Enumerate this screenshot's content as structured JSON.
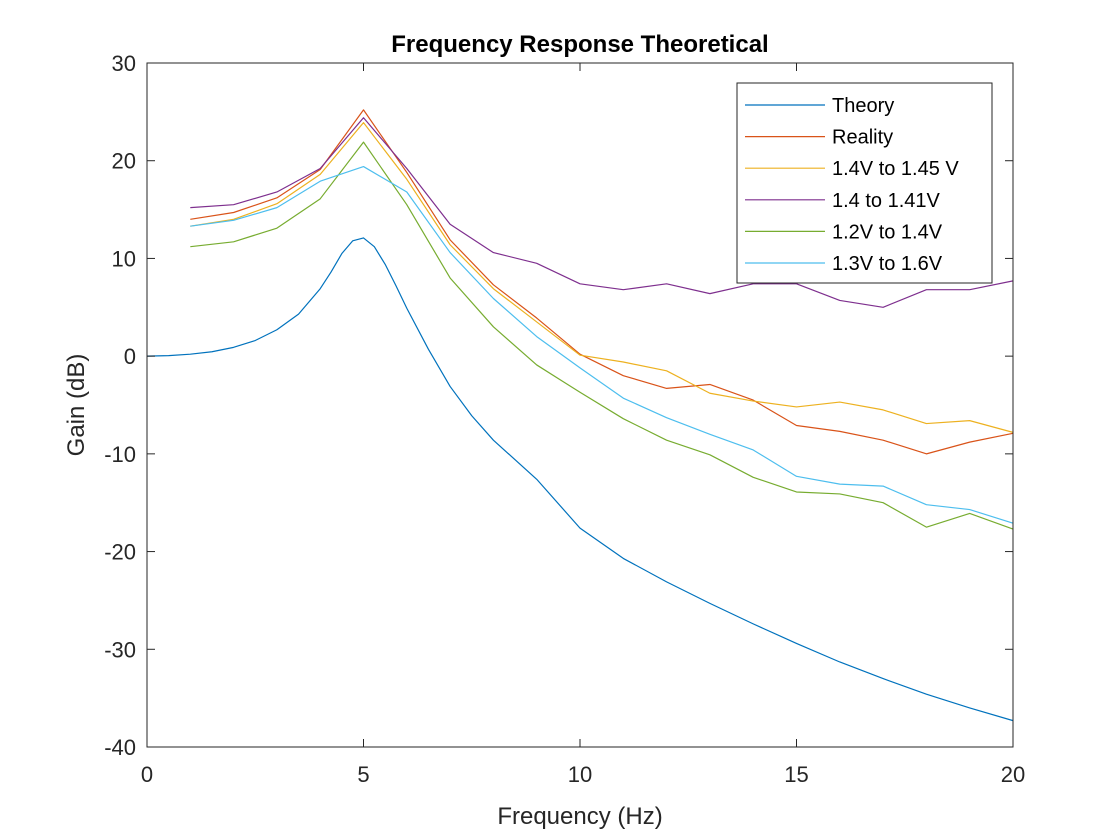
{
  "chart_data": {
    "type": "line",
    "title": "Frequency Response Theoretical",
    "xlabel": "Frequency (Hz)",
    "ylabel": "Gain (dB)",
    "xlim": [
      0,
      20
    ],
    "ylim": [
      -40,
      30
    ],
    "xticks": [
      0,
      5,
      10,
      15,
      20
    ],
    "yticks": [
      30,
      20,
      10,
      0,
      -10,
      -20,
      -30,
      -40
    ],
    "grid": false,
    "legend_position": "top-right",
    "series": [
      {
        "name": "Theory",
        "color": "#0072BD",
        "x": [
          0,
          0.5,
          1,
          1.5,
          2,
          2.5,
          3,
          3.5,
          4,
          4.25,
          4.5,
          4.75,
          5,
          5.25,
          5.5,
          5.75,
          6,
          6.5,
          7,
          7.5,
          8,
          9,
          10,
          11,
          12,
          13,
          14,
          15,
          16,
          17,
          18,
          19,
          20
        ],
        "y": [
          0,
          0.05,
          0.2,
          0.45,
          0.9,
          1.6,
          2.7,
          4.3,
          6.9,
          8.6,
          10.5,
          11.8,
          12.1,
          11.2,
          9.4,
          7.2,
          4.9,
          0.7,
          -3.1,
          -6.1,
          -8.6,
          -12.6,
          -17.6,
          -20.7,
          -23.1,
          -25.3,
          -27.4,
          -29.4,
          -31.3,
          -33.0,
          -34.6,
          -36.0,
          -37.3
        ]
      },
      {
        "name": "Reality",
        "color": "#D95319",
        "x": [
          1,
          2,
          3,
          4,
          5,
          6,
          7,
          8,
          9,
          10,
          11,
          12,
          13,
          14,
          15,
          16,
          17,
          18,
          19,
          20
        ],
        "y": [
          14.0,
          14.7,
          16.2,
          19.1,
          25.2,
          18.8,
          11.9,
          7.3,
          3.9,
          0.2,
          -2.0,
          -3.3,
          -2.9,
          -4.5,
          -7.1,
          -7.7,
          -8.6,
          -10.0,
          -8.8,
          -7.9
        ]
      },
      {
        "name": "1.4V to 1.45 V",
        "color": "#EDB120",
        "x": [
          1,
          2,
          3,
          4,
          5,
          6,
          7,
          8,
          9,
          10,
          11,
          12,
          13,
          14,
          15,
          16,
          17,
          18,
          19,
          20
        ],
        "y": [
          13.3,
          14.0,
          15.6,
          18.6,
          23.9,
          18.1,
          11.4,
          6.9,
          3.5,
          0.1,
          -0.6,
          -1.5,
          -3.8,
          -4.6,
          -5.2,
          -4.7,
          -5.5,
          -6.9,
          -6.6,
          -7.8
        ]
      },
      {
        "name": "1.4 to 1.41V",
        "color": "#7E2F8E",
        "x": [
          1,
          2,
          3,
          4,
          5,
          6,
          7,
          8,
          9,
          10,
          11,
          12,
          13,
          14,
          15,
          16,
          17,
          18,
          19,
          20
        ],
        "y": [
          15.2,
          15.5,
          16.8,
          19.2,
          24.4,
          19.2,
          13.5,
          10.6,
          9.5,
          7.4,
          6.8,
          7.4,
          6.4,
          7.4,
          7.4,
          5.7,
          5.0,
          6.8,
          6.8,
          7.7
        ]
      },
      {
        "name": "1.2V to 1.4V",
        "color": "#77AC30",
        "x": [
          1,
          2,
          3,
          4,
          5,
          6,
          7,
          8,
          9,
          10,
          11,
          12,
          13,
          14,
          15,
          16,
          17,
          18,
          19,
          20
        ],
        "y": [
          11.2,
          11.7,
          13.1,
          16.1,
          21.9,
          15.5,
          8.0,
          3.0,
          -0.9,
          -3.7,
          -6.4,
          -8.6,
          -10.1,
          -12.4,
          -13.9,
          -14.1,
          -15.0,
          -17.5,
          -16.1,
          -17.7
        ]
      },
      {
        "name": "1.3V to 1.6V",
        "color": "#4DBEEE",
        "x": [
          1,
          2,
          3,
          4,
          5,
          6,
          7,
          8,
          9,
          10,
          11,
          12,
          13,
          14,
          15,
          16,
          17,
          18,
          19,
          20
        ],
        "y": [
          13.3,
          13.9,
          15.2,
          17.9,
          19.4,
          16.8,
          10.6,
          5.9,
          2.0,
          -1.2,
          -4.3,
          -6.3,
          -8.0,
          -9.6,
          -12.3,
          -13.1,
          -13.3,
          -15.2,
          -15.7,
          -17.1
        ]
      }
    ]
  }
}
